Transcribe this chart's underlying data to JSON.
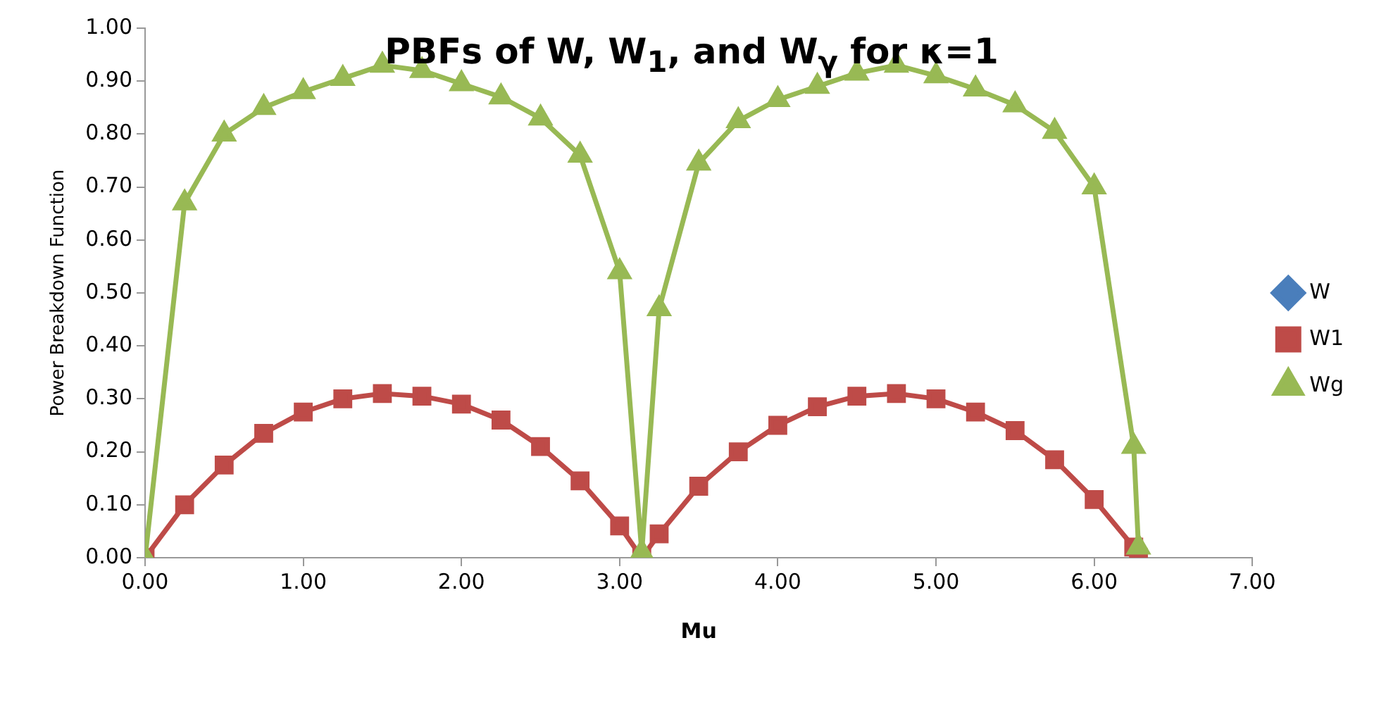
{
  "chart_data": {
    "type": "line",
    "title": "PBFs of W, W$_{1}$, and W$_{γ}$ for κ=1",
    "xlabel": "Mu",
    "ylabel": "Power Breakdown Function",
    "x": [
      0,
      0.25,
      0.5,
      0.75,
      1.0,
      1.25,
      1.5,
      1.75,
      2.0,
      2.25,
      2.5,
      2.75,
      3.0,
      3.14,
      3.25,
      3.5,
      3.75,
      4.0,
      4.25,
      4.5,
      4.75,
      5.0,
      5.25,
      5.5,
      5.75,
      6.0,
      6.25,
      6.28
    ],
    "series": [
      {
        "name": "W",
        "color": "#4a7ebb",
        "marker": "diamond",
        "values": [
          null,
          null,
          null,
          null,
          null,
          null,
          null,
          null,
          null,
          null,
          null,
          null,
          null,
          null,
          null,
          null,
          null,
          null,
          null,
          null,
          null,
          null,
          null,
          null,
          null,
          null,
          null,
          null
        ]
      },
      {
        "name": "W1",
        "color": "#be4b48",
        "marker": "square",
        "values": [
          0,
          0.1,
          0.175,
          0.235,
          0.275,
          0.3,
          0.31,
          0.305,
          0.29,
          0.26,
          0.21,
          0.145,
          0.06,
          0,
          0.045,
          0.135,
          0.2,
          0.25,
          0.285,
          0.305,
          0.31,
          0.3,
          0.275,
          0.24,
          0.185,
          0.11,
          0.02,
          0
        ]
      },
      {
        "name": "Wg",
        "color": "#98b954",
        "marker": "triangle",
        "values": [
          0,
          0.67,
          0.8,
          0.85,
          0.88,
          0.905,
          0.93,
          0.92,
          0.895,
          0.87,
          0.83,
          0.76,
          0.54,
          0.01,
          0.47,
          0.745,
          0.825,
          0.865,
          0.89,
          0.915,
          0.93,
          0.91,
          0.885,
          0.855,
          0.805,
          0.7,
          0.21,
          0.02
        ]
      }
    ],
    "xlim": [
      0,
      7
    ],
    "xticks": [
      {
        "value": 0,
        "label": "0.00"
      },
      {
        "value": 1,
        "label": "1.00"
      },
      {
        "value": 2,
        "label": "2.00"
      },
      {
        "value": 3,
        "label": "3.00"
      },
      {
        "value": 4,
        "label": "4.00"
      },
      {
        "value": 5,
        "label": "5.00"
      },
      {
        "value": 6,
        "label": "6.00"
      },
      {
        "value": 7,
        "label": "7.00"
      }
    ],
    "ylim": [
      0,
      1
    ],
    "yticks": [
      {
        "value": 0,
        "label": "0.00"
      },
      {
        "value": 0.1,
        "label": "0.10"
      },
      {
        "value": 0.2,
        "label": "0.20"
      },
      {
        "value": 0.3,
        "label": "0.30"
      },
      {
        "value": 0.4,
        "label": "0.40"
      },
      {
        "value": 0.5,
        "label": "0.50"
      },
      {
        "value": 0.6,
        "label": "0.60"
      },
      {
        "value": 0.7,
        "label": "0.70"
      },
      {
        "value": 0.8,
        "label": "0.80"
      },
      {
        "value": 0.9,
        "label": "0.90"
      },
      {
        "value": 1,
        "label": "1.00"
      }
    ],
    "grid": false,
    "legend": "right",
    "line_style": "solid"
  }
}
